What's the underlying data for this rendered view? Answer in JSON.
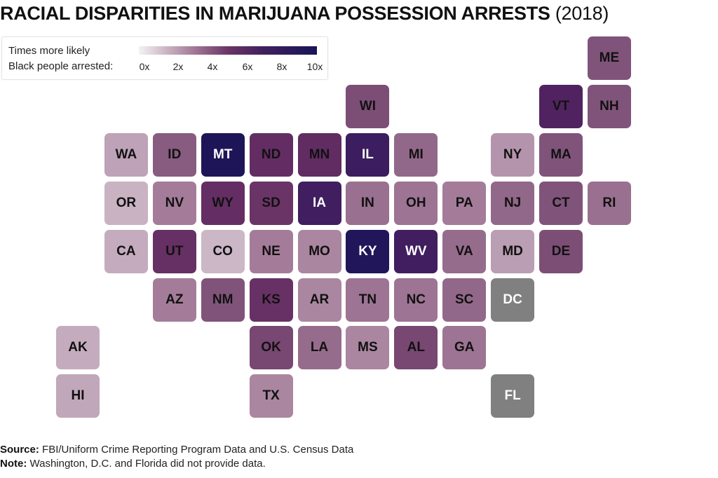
{
  "title": {
    "main": "RACIAL DISPARITIES IN MARIJUANA POSSESSION ARRESTS",
    "year": "(2018)"
  },
  "legend": {
    "line1": "Times more likely",
    "line2": "Black people arrested:",
    "ticks": [
      "0x",
      "2x",
      "4x",
      "6x",
      "8x",
      "10x"
    ]
  },
  "colors": {
    "scale_low": "#f4f2f3",
    "scale_mid": "#6b3466",
    "scale_high": "#181457",
    "no_data": "#808080"
  },
  "chart_data": {
    "type": "heatmap",
    "title": "RACIAL DISPARITIES IN MARIJUANA POSSESSION ARRESTS (2018)",
    "subtitle": "Tile grid map of U.S. states",
    "legend_title": "Times more likely Black people arrested",
    "scale_range": [
      0,
      10
    ],
    "scale_unit": "x",
    "legend_position": "top-left",
    "states": [
      {
        "abbr": "ME",
        "row": 0,
        "col": 11,
        "value": 4.0
      },
      {
        "abbr": "WI",
        "row": 1,
        "col": 6,
        "value": 4.2
      },
      {
        "abbr": "VT",
        "row": 1,
        "col": 10,
        "value": 6.5
      },
      {
        "abbr": "NH",
        "row": 1,
        "col": 11,
        "value": 4.0
      },
      {
        "abbr": "WA",
        "row": 2,
        "col": 1,
        "value": 2.2
      },
      {
        "abbr": "ID",
        "row": 2,
        "col": 2,
        "value": 3.8
      },
      {
        "abbr": "MT",
        "row": 2,
        "col": 3,
        "value": 9.6
      },
      {
        "abbr": "ND",
        "row": 2,
        "col": 4,
        "value": 5.5
      },
      {
        "abbr": "MN",
        "row": 2,
        "col": 5,
        "value": 5.6
      },
      {
        "abbr": "IL",
        "row": 2,
        "col": 6,
        "value": 7.5
      },
      {
        "abbr": "MI",
        "row": 2,
        "col": 7,
        "value": 3.5
      },
      {
        "abbr": "NY",
        "row": 2,
        "col": 9,
        "value": 2.5
      },
      {
        "abbr": "MA",
        "row": 2,
        "col": 10,
        "value": 4.0
      },
      {
        "abbr": "OR",
        "row": 3,
        "col": 1,
        "value": 1.8
      },
      {
        "abbr": "NV",
        "row": 3,
        "col": 2,
        "value": 3.0
      },
      {
        "abbr": "WY",
        "row": 3,
        "col": 3,
        "value": 5.4
      },
      {
        "abbr": "SD",
        "row": 3,
        "col": 4,
        "value": 5.0
      },
      {
        "abbr": "IA",
        "row": 3,
        "col": 5,
        "value": 7.3
      },
      {
        "abbr": "IN",
        "row": 3,
        "col": 6,
        "value": 3.3
      },
      {
        "abbr": "OH",
        "row": 3,
        "col": 7,
        "value": 3.2
      },
      {
        "abbr": "PA",
        "row": 3,
        "col": 8,
        "value": 3.0
      },
      {
        "abbr": "NJ",
        "row": 3,
        "col": 9,
        "value": 3.5
      },
      {
        "abbr": "CT",
        "row": 3,
        "col": 10,
        "value": 4.0
      },
      {
        "abbr": "RI",
        "row": 3,
        "col": 11,
        "value": 3.3
      },
      {
        "abbr": "CA",
        "row": 4,
        "col": 1,
        "value": 2.0
      },
      {
        "abbr": "UT",
        "row": 4,
        "col": 2,
        "value": 5.3
      },
      {
        "abbr": "CO",
        "row": 4,
        "col": 3,
        "value": 1.7
      },
      {
        "abbr": "NE",
        "row": 4,
        "col": 4,
        "value": 3.0
      },
      {
        "abbr": "MO",
        "row": 4,
        "col": 5,
        "value": 2.8
      },
      {
        "abbr": "KY",
        "row": 4,
        "col": 6,
        "value": 9.4
      },
      {
        "abbr": "WV",
        "row": 4,
        "col": 7,
        "value": 7.3
      },
      {
        "abbr": "VA",
        "row": 4,
        "col": 8,
        "value": 3.4
      },
      {
        "abbr": "MD",
        "row": 4,
        "col": 9,
        "value": 2.3
      },
      {
        "abbr": "DE",
        "row": 4,
        "col": 10,
        "value": 4.2
      },
      {
        "abbr": "AZ",
        "row": 5,
        "col": 2,
        "value": 3.0
      },
      {
        "abbr": "NM",
        "row": 5,
        "col": 3,
        "value": 4.0
      },
      {
        "abbr": "KS",
        "row": 5,
        "col": 4,
        "value": 5.2
      },
      {
        "abbr": "AR",
        "row": 5,
        "col": 5,
        "value": 2.8
      },
      {
        "abbr": "TN",
        "row": 5,
        "col": 6,
        "value": 3.2
      },
      {
        "abbr": "NC",
        "row": 5,
        "col": 7,
        "value": 3.2
      },
      {
        "abbr": "SC",
        "row": 5,
        "col": 8,
        "value": 3.5
      },
      {
        "abbr": "DC",
        "row": 5,
        "col": 9,
        "value": null
      },
      {
        "abbr": "AK",
        "row": 6,
        "col": 0,
        "value": 2.0
      },
      {
        "abbr": "OK",
        "row": 6,
        "col": 4,
        "value": 4.4
      },
      {
        "abbr": "LA",
        "row": 6,
        "col": 5,
        "value": 3.4
      },
      {
        "abbr": "MS",
        "row": 6,
        "col": 6,
        "value": 2.8
      },
      {
        "abbr": "AL",
        "row": 6,
        "col": 7,
        "value": 4.4
      },
      {
        "abbr": "GA",
        "row": 6,
        "col": 8,
        "value": 3.2
      },
      {
        "abbr": "HI",
        "row": 7,
        "col": 0,
        "value": 2.1
      },
      {
        "abbr": "TX",
        "row": 7,
        "col": 4,
        "value": 2.8
      },
      {
        "abbr": "FL",
        "row": 7,
        "col": 9,
        "value": null
      }
    ]
  },
  "footer": {
    "source_label": "Source:",
    "source_text": " FBI/Uniform Crime Reporting Program Data and U.S. Census Data",
    "note_label": "Note:",
    "note_text": " Washington, D.C. and Florida did not provide data."
  }
}
